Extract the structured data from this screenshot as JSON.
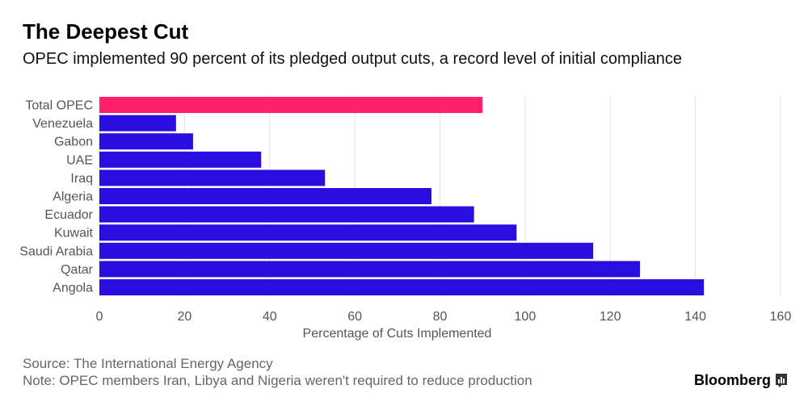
{
  "header": {
    "title": "The Deepest Cut",
    "subtitle": "OPEC implemented 90 percent of its pledged output cuts, a record level of initial compliance"
  },
  "chart_data": {
    "type": "bar",
    "orientation": "horizontal",
    "title": "The Deepest Cut",
    "subtitle": "OPEC implemented 90 percent of its pledged output cuts, a record level of initial compliance",
    "xlabel": "Percentage of Cuts Implemented",
    "ylabel": "",
    "xlim": [
      0,
      160
    ],
    "xticks": [
      0,
      20,
      40,
      60,
      80,
      100,
      120,
      140,
      160
    ],
    "grid": true,
    "categories": [
      "Total OPEC",
      "Venezuela",
      "Gabon",
      "UAE",
      "Iraq",
      "Algeria",
      "Ecuador",
      "Kuwait",
      "Saudi Arabia",
      "Qatar",
      "Angola"
    ],
    "values": [
      90,
      18,
      22,
      38,
      53,
      78,
      88,
      98,
      116,
      127,
      142
    ],
    "highlight_category": "Total OPEC",
    "colors": {
      "highlight": "#ff1f6a",
      "bar": "#2a0ee0",
      "grid": "#e3e3e3",
      "tick": "#555555"
    }
  },
  "footer": {
    "source": "Source: The International Energy Agency",
    "note": "Note: OPEC members Iran, Libya and Nigeria weren't required to reduce production",
    "brand": "Bloomberg",
    "brand_icon": "bloomberg-chart-icon"
  }
}
